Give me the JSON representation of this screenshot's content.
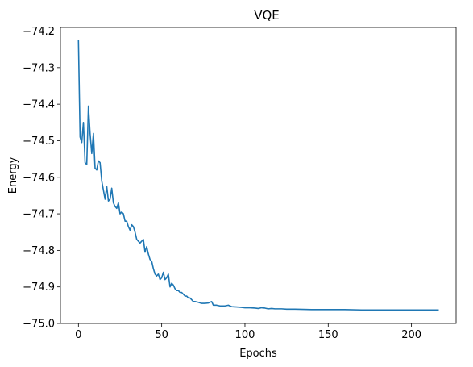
{
  "chart_data": {
    "type": "line",
    "title": "VQE",
    "xlabel": "Epochs",
    "ylabel": "Energy",
    "xlim": [
      -10.8,
      226.8
    ],
    "ylim": [
      -75.0,
      -74.19
    ],
    "xticks": [
      0,
      50,
      100,
      150,
      200
    ],
    "xtick_labels": [
      "0",
      "50",
      "100",
      "150",
      "200"
    ],
    "yticks": [
      -75.0,
      -74.9,
      -74.8,
      -74.7,
      -74.6,
      -74.5,
      -74.4,
      -74.3,
      -74.2
    ],
    "ytick_labels": [
      "−75.0",
      "−74.9",
      "−74.8",
      "−74.7",
      "−74.6",
      "−74.5",
      "−74.4",
      "−74.3",
      "−74.2"
    ],
    "grid": false,
    "color": "#1f77b4",
    "series": [
      {
        "points": [
          [
            0,
            -74.225
          ],
          [
            1,
            -74.49
          ],
          [
            2,
            -74.505
          ],
          [
            3,
            -74.45
          ],
          [
            4,
            -74.56
          ],
          [
            5,
            -74.565
          ],
          [
            6,
            -74.405
          ],
          [
            7,
            -74.48
          ],
          [
            8,
            -74.535
          ],
          [
            9,
            -74.48
          ],
          [
            10,
            -74.575
          ],
          [
            11,
            -74.58
          ],
          [
            12,
            -74.555
          ],
          [
            13,
            -74.56
          ],
          [
            14,
            -74.61
          ],
          [
            15,
            -74.635
          ],
          [
            16,
            -74.66
          ],
          [
            17,
            -74.625
          ],
          [
            18,
            -74.665
          ],
          [
            19,
            -74.66
          ],
          [
            20,
            -74.63
          ],
          [
            21,
            -74.67
          ],
          [
            22,
            -74.68
          ],
          [
            23,
            -74.685
          ],
          [
            24,
            -74.67
          ],
          [
            25,
            -74.7
          ],
          [
            26,
            -74.695
          ],
          [
            27,
            -74.7
          ],
          [
            28,
            -74.72
          ],
          [
            29,
            -74.72
          ],
          [
            30,
            -74.735
          ],
          [
            31,
            -74.745
          ],
          [
            32,
            -74.73
          ],
          [
            33,
            -74.735
          ],
          [
            34,
            -74.75
          ],
          [
            35,
            -74.77
          ],
          [
            36,
            -74.775
          ],
          [
            37,
            -74.78
          ],
          [
            38,
            -74.775
          ],
          [
            39,
            -74.77
          ],
          [
            40,
            -74.805
          ],
          [
            41,
            -74.79
          ],
          [
            42,
            -74.81
          ],
          [
            43,
            -74.825
          ],
          [
            44,
            -74.83
          ],
          [
            45,
            -74.85
          ],
          [
            46,
            -74.865
          ],
          [
            47,
            -74.87
          ],
          [
            48,
            -74.865
          ],
          [
            49,
            -74.88
          ],
          [
            50,
            -74.875
          ],
          [
            51,
            -74.86
          ],
          [
            52,
            -74.88
          ],
          [
            53,
            -74.875
          ],
          [
            54,
            -74.865
          ],
          [
            55,
            -74.9
          ],
          [
            56,
            -74.89
          ],
          [
            57,
            -74.895
          ],
          [
            58,
            -74.905
          ],
          [
            59,
            -74.91
          ],
          [
            60,
            -74.91
          ],
          [
            61,
            -74.915
          ],
          [
            62,
            -74.915
          ],
          [
            63,
            -74.92
          ],
          [
            64,
            -74.925
          ],
          [
            65,
            -74.925
          ],
          [
            66,
            -74.93
          ],
          [
            67,
            -74.93
          ],
          [
            68,
            -74.935
          ],
          [
            69,
            -74.94
          ],
          [
            70,
            -74.94
          ],
          [
            72,
            -74.942
          ],
          [
            74,
            -74.945
          ],
          [
            76,
            -74.945
          ],
          [
            78,
            -74.944
          ],
          [
            80,
            -74.94
          ],
          [
            81,
            -74.95
          ],
          [
            83,
            -74.95
          ],
          [
            85,
            -74.952
          ],
          [
            88,
            -74.952
          ],
          [
            90,
            -74.95
          ],
          [
            92,
            -74.954
          ],
          [
            95,
            -74.955
          ],
          [
            98,
            -74.956
          ],
          [
            100,
            -74.957
          ],
          [
            103,
            -74.957
          ],
          [
            106,
            -74.958
          ],
          [
            108,
            -74.959
          ],
          [
            110,
            -74.957
          ],
          [
            112,
            -74.958
          ],
          [
            114,
            -74.96
          ],
          [
            116,
            -74.959
          ],
          [
            118,
            -74.96
          ],
          [
            120,
            -74.96
          ],
          [
            122,
            -74.96
          ],
          [
            125,
            -74.961
          ],
          [
            130,
            -74.961
          ],
          [
            140,
            -74.962
          ],
          [
            150,
            -74.962
          ],
          [
            160,
            -74.962
          ],
          [
            170,
            -74.963
          ],
          [
            180,
            -74.963
          ],
          [
            190,
            -74.963
          ],
          [
            200,
            -74.963
          ],
          [
            210,
            -74.963
          ],
          [
            216,
            -74.963
          ]
        ]
      }
    ]
  }
}
